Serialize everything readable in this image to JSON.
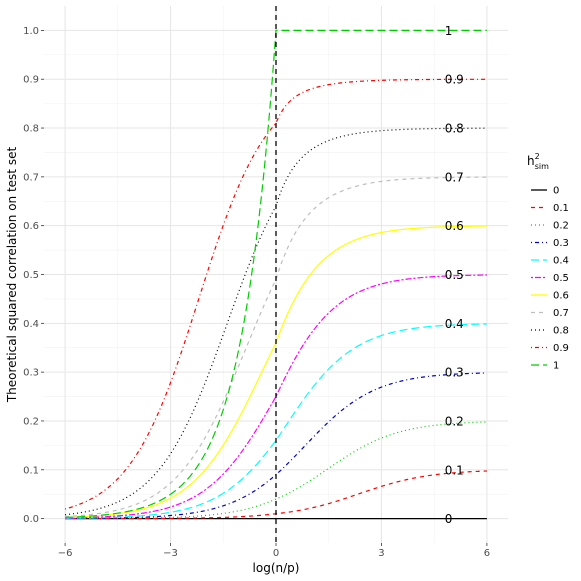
{
  "chart_data": {
    "type": "line",
    "xlabel": "log(n/p)",
    "ylabel": "Theoretical squared correlation on test set",
    "xlim": [
      -6.6,
      6.6
    ],
    "ylim": [
      -0.05,
      1.05
    ],
    "x_ticks": [
      -6,
      -3,
      0,
      3,
      6
    ],
    "x_tick_labels": [
      "−6",
      "−3",
      "0",
      "3",
      "6"
    ],
    "y_ticks": [
      0.0,
      0.1,
      0.2,
      0.3,
      0.4,
      0.5,
      0.6,
      0.7,
      0.8,
      0.9,
      1.0
    ],
    "y_tick_labels": [
      "0.0",
      "0.1",
      "0.2",
      "0.3",
      "0.4",
      "0.5",
      "0.6",
      "0.7",
      "0.8",
      "0.9",
      "1.0"
    ],
    "grid": true,
    "vline_x": 0,
    "legend": {
      "title_main": "h",
      "title_sup": "2",
      "title_sub": "sim",
      "placement": "right"
    },
    "series": [
      {
        "name": "0",
        "h2": 0.0,
        "color": "#000000",
        "dash": "solid"
      },
      {
        "name": "0.1",
        "h2": 0.1,
        "color": "#ff0000",
        "dash": "dashed"
      },
      {
        "name": "0.2",
        "h2": 0.2,
        "color": "#00cd00",
        "dash": "dotted"
      },
      {
        "name": "0.3",
        "h2": 0.3,
        "color": "#0000cd",
        "dash": "dotdash"
      },
      {
        "name": "0.4",
        "h2": 0.4,
        "color": "#00ffff",
        "dash": "longdash"
      },
      {
        "name": "0.5",
        "h2": 0.5,
        "color": "#ff00ff",
        "dash": "twodash"
      },
      {
        "name": "0.6",
        "h2": 0.6,
        "color": "#ffff00",
        "dash": "solid"
      },
      {
        "name": "0.7",
        "h2": 0.7,
        "color": "#bebebe",
        "dash": "dashed"
      },
      {
        "name": "0.8",
        "h2": 0.8,
        "color": "#000000",
        "dash": "dotted"
      },
      {
        "name": "0.9",
        "h2": 0.9,
        "color": "#ff0000",
        "dash": "dotdash"
      },
      {
        "name": "1",
        "h2": 1.0,
        "color": "#00cd00",
        "dash": "longdash"
      }
    ],
    "curve_labels": [
      {
        "text": "0",
        "x": 4.8,
        "y": 0.0
      },
      {
        "text": "0.1",
        "x": 4.8,
        "y": 0.1
      },
      {
        "text": "0.2",
        "x": 4.8,
        "y": 0.2
      },
      {
        "text": "0.3",
        "x": 4.8,
        "y": 0.3
      },
      {
        "text": "0.4",
        "x": 4.8,
        "y": 0.4
      },
      {
        "text": "0.5",
        "x": 4.8,
        "y": 0.5
      },
      {
        "text": "0.6",
        "x": 4.8,
        "y": 0.6
      },
      {
        "text": "0.7",
        "x": 4.8,
        "y": 0.7
      },
      {
        "text": "0.8",
        "x": 4.8,
        "y": 0.8
      },
      {
        "text": "0.9",
        "x": 4.8,
        "y": 0.9
      },
      {
        "text": "1",
        "x": 4.8,
        "y": 1.0
      }
    ]
  }
}
